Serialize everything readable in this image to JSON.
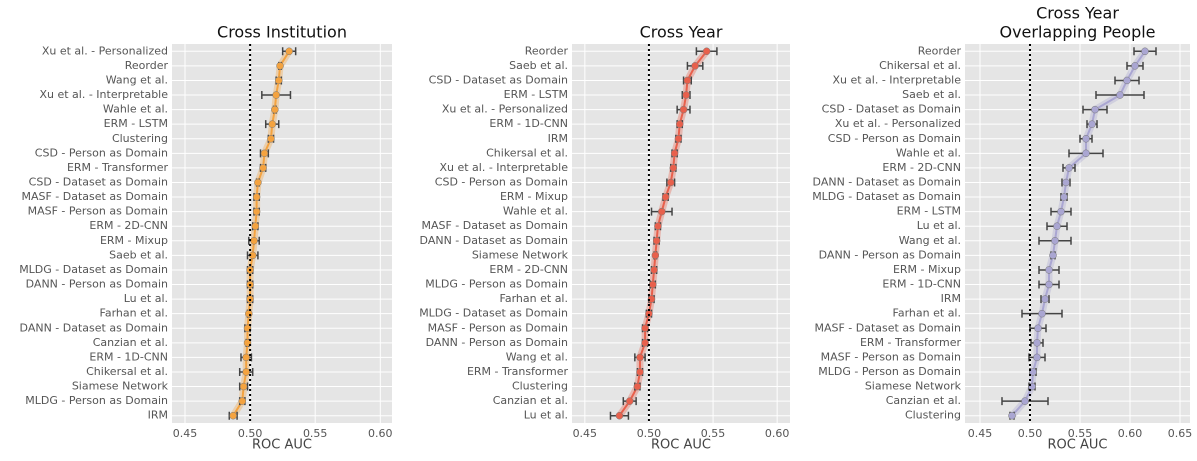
{
  "chart_data": [
    {
      "type": "errorbar",
      "title": [
        "Cross Institution"
      ],
      "xlabel": "ROC AUC",
      "color": "#f4a340",
      "refline": 0.5,
      "xlim": [
        0.44,
        0.609
      ],
      "xticks": [
        0.45,
        {
          "value": 0.5,
          "label": "0.50"
        },
        0.55,
        {
          "value": 0.6,
          "label": "0.60"
        }
      ],
      "categories": [
        "Xu et al. - Personalized",
        "Reorder",
        "Wang et al.",
        "Xu et al. - Interpretable",
        "Wahle et al.",
        "ERM - LSTM",
        "Clustering",
        "CSD - Person as Domain",
        "ERM - Transformer",
        "CSD - Dataset as Domain",
        "MASF - Dataset as Domain",
        "MASF - Person as Domain",
        "ERM - 2D-CNN",
        "ERM - Mixup",
        "Saeb et al.",
        "MLDG - Dataset as Domain",
        "DANN - Person as Domain",
        "Lu et al.",
        "Farhan et al.",
        "DANN - Dataset as Domain",
        "Canzian et al.",
        "ERM - 1D-CNN",
        "Chikersal et al.",
        "Siamese Network",
        "MLDG - Person as Domain",
        "IRM"
      ],
      "values": [
        0.53,
        0.523,
        0.522,
        0.52,
        0.519,
        0.517,
        0.516,
        0.511,
        0.51,
        0.506,
        0.505,
        0.505,
        0.504,
        0.503,
        0.502,
        0.5,
        0.5,
        0.5,
        0.499,
        0.498,
        0.498,
        0.497,
        0.497,
        0.495,
        0.494,
        0.487
      ],
      "errors": [
        0.005,
        0.001,
        0.002,
        0.011,
        0.001,
        0.005,
        0.002,
        0.003,
        0.002,
        0.001,
        0.002,
        0.002,
        0.002,
        0.004,
        0.004,
        0.002,
        0.002,
        0.002,
        0.001,
        0.002,
        0.001,
        0.004,
        0.005,
        0.003,
        0.002,
        0.003
      ]
    },
    {
      "type": "errorbar",
      "title": [
        "Cross Year"
      ],
      "xlabel": "ROC AUC",
      "color": "#e8604c",
      "refline": 0.5,
      "xlim": [
        0.44,
        0.61
      ],
      "xticks": [
        0.45,
        {
          "value": 0.5,
          "label": "0.50"
        },
        0.55,
        {
          "value": 0.6,
          "label": "0.60"
        }
      ],
      "categories": [
        "Reorder",
        "Saeb et al.",
        "CSD - Dataset as Domain",
        "ERM - LSTM",
        "Xu et al. - Personalized",
        "ERM - 1D-CNN",
        "IRM",
        "Chikersal et al.",
        "Xu et al. - Interpretable",
        "CSD - Person as Domain",
        "ERM - Mixup",
        "Wahle et al.",
        "MASF - Dataset as Domain",
        "DANN - Dataset as Domain",
        "Siamese Network",
        "ERM - 2D-CNN",
        "MLDG - Person as Domain",
        "Farhan et al.",
        "MLDG - Dataset as Domain",
        "MASF - Person as Domain",
        "DANN - Person as Domain",
        "Wang et al.",
        "ERM - Transformer",
        "Clustering",
        "Canzian et al.",
        "Lu et al."
      ],
      "values": [
        0.545,
        0.536,
        0.53,
        0.529,
        0.527,
        0.524,
        0.523,
        0.52,
        0.519,
        0.517,
        0.513,
        0.51,
        0.507,
        0.506,
        0.505,
        0.504,
        0.503,
        0.502,
        0.5,
        0.497,
        0.497,
        0.493,
        0.493,
        0.491,
        0.485,
        0.477
      ],
      "errors": [
        0.008,
        0.006,
        0.003,
        0.003,
        0.005,
        0.002,
        0.002,
        0.002,
        0.002,
        0.003,
        0.002,
        0.008,
        0.002,
        0.002,
        0.001,
        0.002,
        0.002,
        0.002,
        0.002,
        0.002,
        0.002,
        0.004,
        0.002,
        0.002,
        0.005,
        0.007
      ]
    },
    {
      "type": "errorbar",
      "title": [
        "Cross Year",
        "Overlapping People"
      ],
      "xlabel": "ROC AUC",
      "color": "#aaa6d2",
      "refline": 0.5,
      "xlim": [
        0.435,
        0.66
      ],
      "xticks": [
        0.45,
        {
          "value": 0.5,
          "label": "0.50"
        },
        0.55,
        {
          "value": 0.6,
          "label": "0.60"
        },
        0.65
      ],
      "categories": [
        "Reorder",
        "Chikersal et al.",
        "Xu et al. - Interpretable",
        "Saeb et al.",
        "CSD - Dataset as Domain",
        "Xu et al. - Personalized",
        "CSD - Person as Domain",
        "Wahle et al.",
        "ERM - 2D-CNN",
        "DANN - Dataset as Domain",
        "MLDG - Dataset as Domain",
        "ERM - LSTM",
        "Lu et al.",
        "Wang et al.",
        "DANN - Person as Domain",
        "ERM - Mixup",
        "ERM - 1D-CNN",
        "IRM",
        "Farhan et al.",
        "MASF - Dataset as Domain",
        "ERM - Transformer",
        "MASF - Person as Domain",
        "MLDG - Person as Domain",
        "Siamese Network",
        "Canzian et al.",
        "Clustering"
      ],
      "values": [
        0.615,
        0.605,
        0.597,
        0.59,
        0.565,
        0.562,
        0.556,
        0.556,
        0.539,
        0.536,
        0.534,
        0.531,
        0.527,
        0.525,
        0.523,
        0.519,
        0.519,
        0.515,
        0.512,
        0.508,
        0.507,
        0.507,
        0.503,
        0.502,
        0.495,
        0.482
      ],
      "errors": [
        0.011,
        0.008,
        0.012,
        0.024,
        0.012,
        0.005,
        0.006,
        0.017,
        0.006,
        0.004,
        0.003,
        0.01,
        0.01,
        0.016,
        0.002,
        0.01,
        0.01,
        0.004,
        0.02,
        0.008,
        0.006,
        0.008,
        0.003,
        0.003,
        0.023,
        0.002
      ]
    }
  ]
}
